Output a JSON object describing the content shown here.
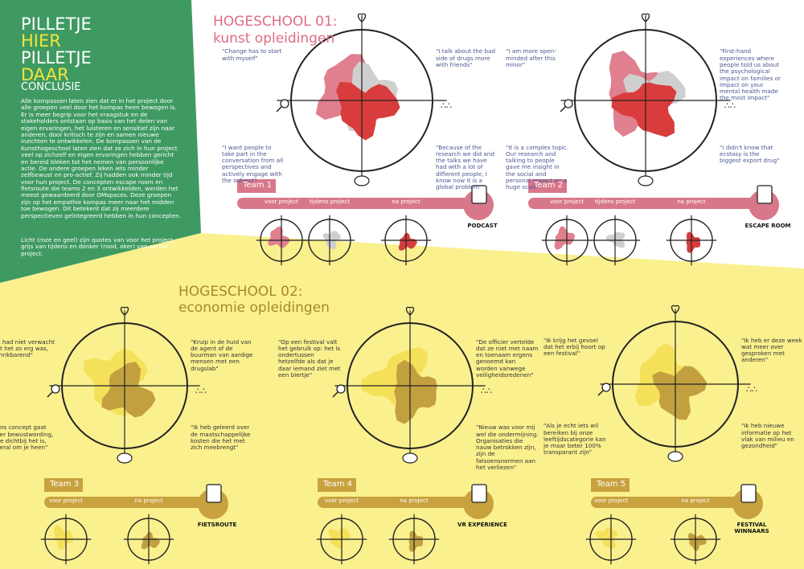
{
  "intro": {
    "title": [
      "PILLETJE",
      "HIER",
      "PILLETJE",
      "DAAR"
    ],
    "heading": "CONCLUSIE",
    "body": "Alle kompassen laten zien dat er in het project door alle groepen veel door het kompas heen bewogen is. Er is meer begrip voor het vraagstuk en de stakeholders ontstaan op basis van het delen van eigen ervaringen, het luisteren en sensitief zijn naar anderen, door kritisch te zijn en samen nieuwe inzichten te ontwikkelen. De kompassen van de Kunsthogeschool laten zien dat ze zich in hun project veel op zichzelf en eigen ervaringen hebben gericht en bereid bleken tot het nemen van persoonlijke actie. De andere groepen leken iets minder zelfbewust en pro-actief. Zij hadden ook minder tijd voor hun project. De concepten escape room en fietsroute die teams 2 en 3 ontwikkelden, werden het meest gewaardeerd door OMspaces. Deze groepen zijn op het empathie kompas meer naar het midden toe bewogen. Dit betekent dat zij meerdere perspectieven geïntegreerd hebben in hun concepten.",
    "note": "Licht (roze en geel) zijn quotes van voor het project, grijs van tijdens en donker (rood, oker) van na het project."
  },
  "schools": [
    {
      "title": "HOGESCHOOL 01:",
      "subtitle": "kunst opleidingen",
      "teams": [
        {
          "name": "Team 1",
          "quotes": [
            "\"Change has to start with myself\"",
            "\"I talk about the bad side of drugs more with friends\"",
            "\"I want people to take part in the conversation from all perspectives and actively engage with the subject\"",
            "\"Because of the research we did and the talks we have had with a lot of different people, I know now it is a global problem\""
          ],
          "phases": [
            "voor project",
            "tijdens project",
            "na project"
          ],
          "product": "PODCAST"
        },
        {
          "name": "Team 2",
          "quotes": [
            "\"I am more open-minded after this minor\"",
            "\"First-hand experiences where people told us about the psychological impact on families or impact on your mental health made the most impact\"",
            "\"It is a complex topic. Our research and talking to people gave me insight in the social and personal impact on a huge scale\"",
            "\"I didn't know that ecstasy is the biggest export drug\""
          ],
          "phases": [
            "voor project",
            "tijdens project",
            "na project"
          ],
          "product": "ESCAPE ROOM"
        }
      ]
    },
    {
      "title": "HOGESCHOOL 02:",
      "subtitle": "economie opleidingen",
      "teams": [
        {
          "name": "Team 3",
          "quotes": [
            "\"Ik had niet verwacht dat het zo erg was, schrikbarend\"",
            "\"Kruip in de huid van de agent of de buurman van aardige mensen met een drugslab\"",
            "\"Ons concept gaat over bewustwording, hoe dichtbij het is, overal om je heen\"",
            "\"Ik heb geleerd over de maatschappelijke kosten die het met zich meebrengt\""
          ],
          "phases": [
            "voor project",
            "na project"
          ],
          "product": "FIETSROUTE"
        },
        {
          "name": "Team 4",
          "quotes": [
            "\"Op een festival valt het gebruik op: het is ondertussen hetzelfde als dat je daar iemand ziet met een biertje\"",
            "\"De officier vertelde dat ze niet met naam en toenaam ergens genoemd kan worden vanwege veiligheidsredenen\"",
            "\"Nieuw was voor mij wel die ondermijning. Organisaties die nauw betrokken zijn, zijn de fatsoensnormen aan het verliezen\""
          ],
          "phases": [
            "voor project",
            "na project"
          ],
          "product": "VR EXPERIENCE"
        },
        {
          "name": "Team 5",
          "quotes": [
            "\"Ik krijg het gevoel dat het erbij hoort op een festival\"",
            "\"Ik heb er deze week wat meer over gesproken met anderen\"",
            "\"Als je echt iets wil bereiken bij onze leeftijdscategorie kan je maar beter 100% transparant zijn\"",
            "\"Ik heb nieuwe informatie op het vlak van milieu en gezondheid\""
          ],
          "phases": [
            "voor project",
            "na project"
          ],
          "product": "FESTIVAL WINNAARS"
        }
      ]
    }
  ]
}
